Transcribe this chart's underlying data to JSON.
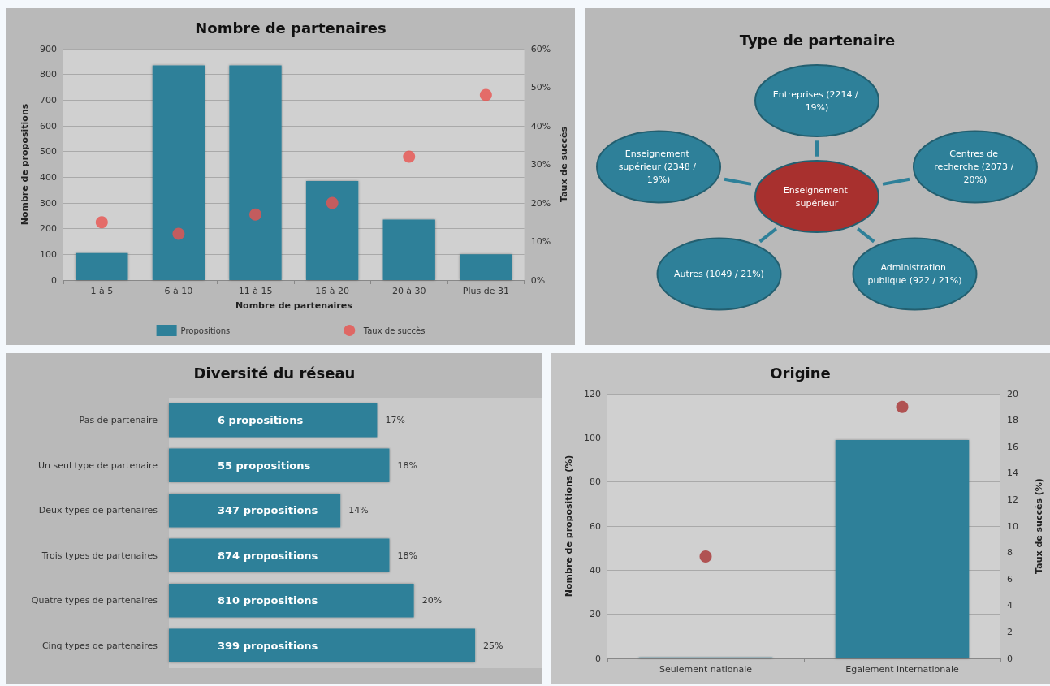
{
  "chart_data": [
    {
      "type": "bar",
      "title": "Nombre de partenaires",
      "xlabel": "Nombre de partenaires",
      "ylabel": "Nombre de propositions",
      "y2label": "Taux de succès",
      "categories": [
        "1 à 5",
        "6 à 10",
        "11 à 15",
        "16 à 20",
        "20 à 30",
        "Plus de 31"
      ],
      "series": [
        {
          "name": "Propositions",
          "color": "#2e8099",
          "values": [
            105,
            835,
            835,
            385,
            235,
            100
          ]
        },
        {
          "name": "Taux de succès",
          "type": "scatter",
          "axis": "y2",
          "color": "#e8524f",
          "values": [
            15,
            12,
            17,
            20,
            32,
            48
          ]
        }
      ],
      "ylim": [
        0,
        900
      ],
      "yticks": [
        0,
        100,
        200,
        300,
        400,
        500,
        600,
        700,
        800,
        900
      ],
      "y2lim": [
        0,
        60
      ],
      "y2ticks": [
        {
          "value": 0,
          "label": "0%"
        },
        {
          "value": 10,
          "label": "10%"
        },
        {
          "value": 20,
          "label": "20%"
        },
        {
          "value": 30,
          "label": "30%"
        },
        {
          "value": 40,
          "label": "40%"
        },
        {
          "value": 50,
          "label": "50%"
        },
        {
          "value": 60,
          "label": "60%"
        }
      ],
      "grid": "y",
      "legend": "bottom",
      "marker": "circle"
    },
    {
      "type": "other",
      "title": "Type de partenaire",
      "annotations": [
        "Enseignement supérieur",
        "Entreprises (2214 / 19%)",
        "Centres de recherche (2073 / 20%)",
        "Administration publique (922 / 21%)",
        "Autres (1049 / 21%)",
        "Enseignement supérieur (2348 / 19%)"
      ],
      "colors": [
        "#a8302e",
        "#2e8099",
        "#2e8099",
        "#2e8099",
        "#2e8099",
        "#2e8099"
      ]
    },
    {
      "type": "bar",
      "title": "Diversité du réseau",
      "orientation": "horizontal",
      "categories": [
        "Pas de partenaire",
        "Un seul type de partenaire",
        "Deux types de partenaires",
        "Trois types de partenaires",
        "Quatre types de partenaires",
        "Cinq types de partenaires"
      ],
      "series": [
        {
          "color": "#2e8099",
          "values": [
            17,
            18,
            14,
            18,
            20,
            25
          ],
          "value_labels": [
            "17%",
            "18%",
            "14%",
            "18%",
            "20%",
            "25%"
          ]
        }
      ],
      "annotations": [
        "6 propositions",
        "55 propositions",
        "347 propositions",
        "874 propositions",
        "810 propositions",
        "399 propositions"
      ]
    },
    {
      "type": "bar",
      "title": "Origine",
      "ylabel": "Nombre de propositions (%)",
      "y2label": "Taux de succès (%)",
      "categories": [
        "Seulement nationale",
        "Egalement internationale"
      ],
      "series": [
        {
          "color": "#2e8099",
          "values": [
            0.5,
            99
          ]
        },
        {
          "type": "scatter",
          "axis": "y2",
          "color": "#a83232",
          "values": [
            7.7,
            19
          ]
        }
      ],
      "ylim": [
        0,
        120
      ],
      "yticks": [
        0,
        20,
        40,
        60,
        80,
        100,
        120
      ],
      "y2lim": [
        0,
        20
      ],
      "y2ticks": [
        0,
        2,
        4,
        6,
        8,
        10,
        12,
        14,
        16,
        18,
        20
      ],
      "grid": "y",
      "marker": "circle"
    }
  ]
}
